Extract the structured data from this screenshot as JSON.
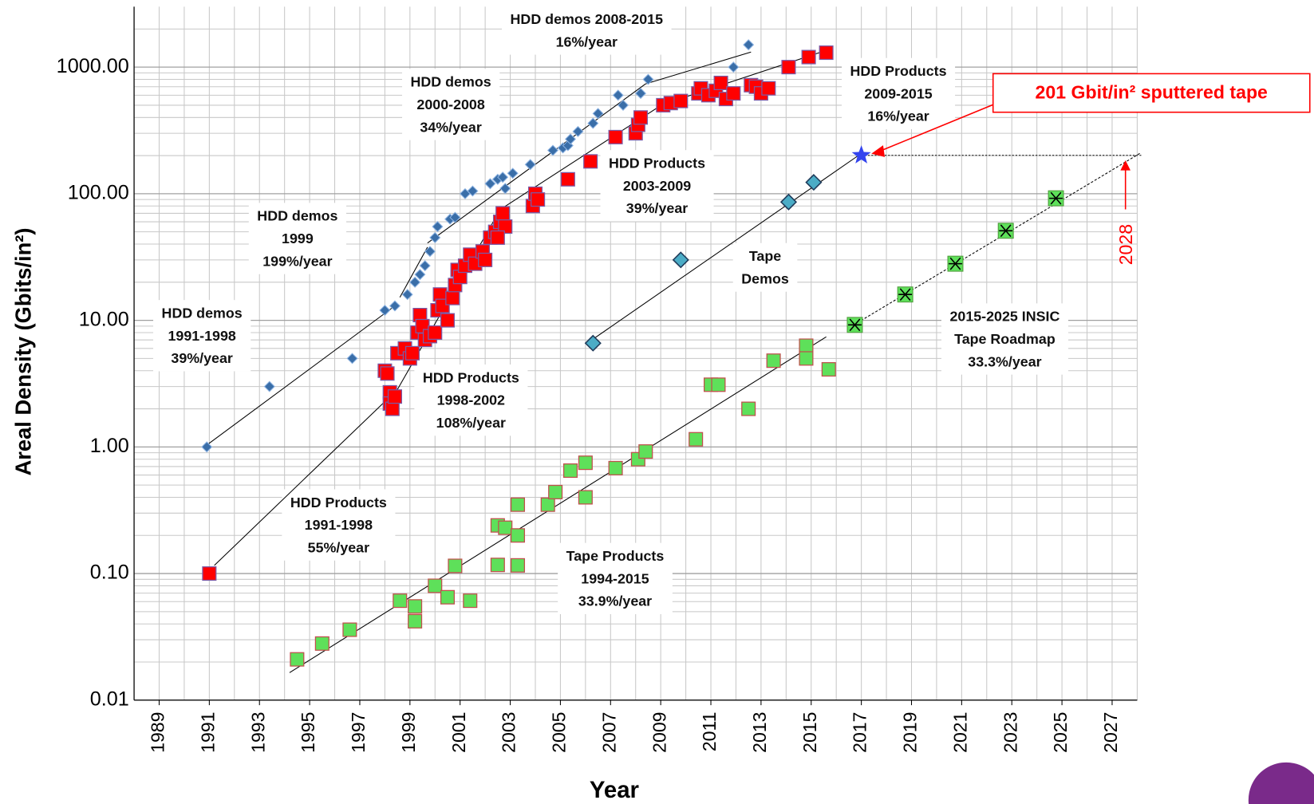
{
  "chart_data": {
    "type": "scatter",
    "log_y": true,
    "grid": true,
    "x_label": "Year",
    "y_label": "Areal Density (Gbits/in²)",
    "xlim": [
      1988,
      2028
    ],
    "xticks": [
      1989,
      1991,
      1993,
      1995,
      1997,
      1999,
      2001,
      2003,
      2005,
      2007,
      2009,
      2011,
      2013,
      2015,
      2017,
      2019,
      2021,
      2023,
      2025,
      2027
    ],
    "ylim": [
      0.01,
      3000
    ],
    "yticks": [
      {
        "value": 0.01,
        "label": "0.01"
      },
      {
        "value": 0.1,
        "label": "0.10"
      },
      {
        "value": 1,
        "label": "1.00"
      },
      {
        "value": 10,
        "label": "10.00"
      },
      {
        "value": 100,
        "label": "100.00"
      },
      {
        "value": 1000,
        "label": "1000.00"
      }
    ],
    "series": [
      {
        "marker": "diamond",
        "color": "#3a6ea8",
        "stroke": "#8db3e2",
        "x": [
          1990.9,
          1993.4,
          1996.7,
          1998.0,
          1998.4,
          1998.9,
          1999.2,
          1999.4,
          1999.6,
          1999.8,
          2000.0,
          2000.1,
          2000.6,
          2000.8,
          2001.2,
          2001.5,
          2002.2,
          2002.5,
          2002.7,
          2002.8,
          2003.1,
          2003.8,
          2004.7,
          2005.1,
          2005.3,
          2005.4,
          2005.7,
          2006.3,
          2006.5,
          2007.3,
          2007.5,
          2008.2,
          2008.5,
          2011.9,
          2012.5
        ],
        "values": [
          1.0,
          3.0,
          5.0,
          12,
          13,
          16,
          20,
          23,
          27,
          35,
          45,
          55,
          63,
          65,
          100,
          105,
          120,
          130,
          135,
          110,
          145,
          170,
          220,
          230,
          240,
          270,
          310,
          360,
          430,
          600,
          500,
          620,
          800,
          1000,
          1500
        ]
      },
      {
        "marker": "square",
        "color": "#ff0000",
        "stroke": "#7b5aa6",
        "x": [
          1991.0,
          1998.0,
          1998.1,
          1998.2,
          1998.2,
          1998.3,
          1998.4,
          1998.5,
          1998.8,
          1999.0,
          1999.1,
          1999.3,
          1999.4,
          1999.5,
          1999.6,
          1999.8,
          2000.0,
          2000.1,
          2000.2,
          2000.3,
          2000.5,
          2000.7,
          2000.8,
          2000.9,
          2001.0,
          2001.2,
          2001.4,
          2001.6,
          2001.9,
          2002.0,
          2002.2,
          2002.4,
          2002.6,
          2002.7,
          2002.8,
          2002.5,
          2003.9,
          2004.0,
          2004.1,
          2005.3,
          2006.2,
          2007.2,
          2008.0,
          2008.1,
          2008.2,
          2009.1,
          2009.4,
          2009.8,
          2010.5,
          2010.6,
          2010.9,
          2011.2,
          2011.4,
          2011.6,
          2011.9,
          2012.6,
          2012.8,
          2013.0,
          2013.3,
          2014.1,
          2014.9,
          2015.6
        ],
        "values": [
          0.1,
          4.0,
          3.8,
          2.7,
          2.2,
          2.0,
          2.5,
          5.5,
          6,
          5,
          5.5,
          8,
          11,
          9,
          7,
          7.5,
          8,
          12,
          16,
          13,
          10,
          15,
          19,
          25,
          22,
          27,
          33,
          28,
          35,
          30,
          45,
          50,
          60,
          70,
          55,
          45,
          80,
          100,
          90,
          130,
          180,
          280,
          300,
          350,
          400,
          500,
          520,
          540,
          620,
          680,
          600,
          650,
          750,
          560,
          620,
          720,
          700,
          620,
          680,
          1000,
          1200,
          1300
        ]
      },
      {
        "marker": "diamond-large",
        "color": "#4bacc6",
        "stroke": "#1f3b5a",
        "x": [
          2006.3,
          2009.8,
          2014.1,
          2015.1
        ],
        "values": [
          6.6,
          30,
          86,
          123
        ]
      },
      {
        "marker": "square",
        "color": "#5ee05a",
        "stroke": "#c0504d",
        "x": [
          1994.5,
          1995.5,
          1996.6,
          1998.6,
          1999.2,
          1999.2,
          2000.0,
          2000.5,
          2000.8,
          2001.4,
          2002.5,
          2002.5,
          2002.8,
          2003.3,
          2003.3,
          2003.3,
          2004.5,
          2004.8,
          2005.4,
          2006.0,
          2006.0,
          2007.2,
          2008.1,
          2008.4,
          2010.4,
          2011.0,
          2011.3,
          2012.5,
          2013.5,
          2014.8,
          2014.8,
          2015.7
        ],
        "values": [
          0.021,
          0.028,
          0.036,
          0.061,
          0.055,
          0.042,
          0.08,
          0.065,
          0.115,
          0.061,
          0.24,
          0.117,
          0.23,
          0.2,
          0.35,
          0.116,
          0.35,
          0.44,
          0.65,
          0.75,
          0.4,
          0.68,
          0.8,
          0.92,
          1.15,
          3.1,
          3.1,
          2.0,
          4.8,
          6.3,
          5.0,
          4.1
        ]
      },
      {
        "marker": "square-star",
        "color": "#5ee05a",
        "stroke": "#000000",
        "x": [
          2016.74,
          2018.75,
          2020.75,
          2022.76,
          2024.76
        ],
        "values": [
          9.2,
          16,
          28,
          51,
          92
        ]
      }
    ],
    "annotations": [
      {
        "lines": [
          "HDD demos",
          "1991-1998",
          "39%/year"
        ],
        "fit": {
          "x": [
            1990.8,
            1998.4
          ],
          "y": [
            1.0,
            13
          ]
        }
      },
      {
        "lines": [
          "HDD demos",
          "1999",
          "199%/year"
        ],
        "fit": {
          "x": [
            1998.6,
            1999.7
          ],
          "y": [
            15.2,
            37.8
          ]
        }
      },
      {
        "lines": [
          "HDD demos",
          "2000-2008",
          "34%/year"
        ],
        "fit": {
          "x": [
            1999.7,
            2008.4
          ],
          "y": [
            40.8,
            738
          ]
        }
      },
      {
        "lines": [
          "HDD demos 2008-2015",
          "16%/year"
        ],
        "fit": {
          "x": [
            2008.4,
            2012.6
          ],
          "y": [
            738,
            1315
          ]
        }
      },
      {
        "lines": [
          "HDD Products",
          "1991-1998",
          "55%/year"
        ],
        "fit": {
          "x": [
            1991.2,
            1998.5
          ],
          "y": [
            0.116,
            2.84
          ]
        }
      },
      {
        "lines": [
          "HDD Products",
          "1998-2002",
          "108%/year"
        ],
        "fit": {
          "x": [
            1998.5,
            2002.6
          ],
          "y": [
            2.84,
            75
          ]
        }
      },
      {
        "lines": [
          "HDD Products",
          "2003-2009",
          "39%/year"
        ],
        "fit": {
          "x": [
            2002.6,
            2009.05
          ],
          "y": [
            75,
            504
          ]
        }
      },
      {
        "lines": [
          "HDD Products",
          "2009-2015",
          "16%/year"
        ],
        "fit": {
          "x": [
            2009.05,
            2015.6
          ],
          "y": [
            504,
            1356
          ]
        }
      },
      {
        "lines": [
          "Tape",
          "Demos"
        ],
        "fit": {
          "x": [
            2006.3,
            2017.0
          ],
          "y": [
            7.1,
            208
          ]
        }
      },
      {
        "lines": [
          "Tape Products",
          "1994-2015",
          "33.9%/year"
        ],
        "fit": {
          "x": [
            1994.2,
            2015.6
          ],
          "y": [
            0.0165,
            7.4
          ]
        }
      },
      {
        "lines": [
          "2015-2025 INSIC",
          "Tape Roadmap",
          "33.3%/year"
        ],
        "fit": {
          "x": [
            2016.7,
            2028.1
          ],
          "y": [
            9.2,
            208
          ]
        }
      }
    ],
    "callout": {
      "text": "201 Gbit/in² sputtered tape",
      "x": 2017,
      "y": 201,
      "color": "#ff0000",
      "star_color": "#3344ee"
    },
    "projection": {
      "x": 2028
    }
  }
}
